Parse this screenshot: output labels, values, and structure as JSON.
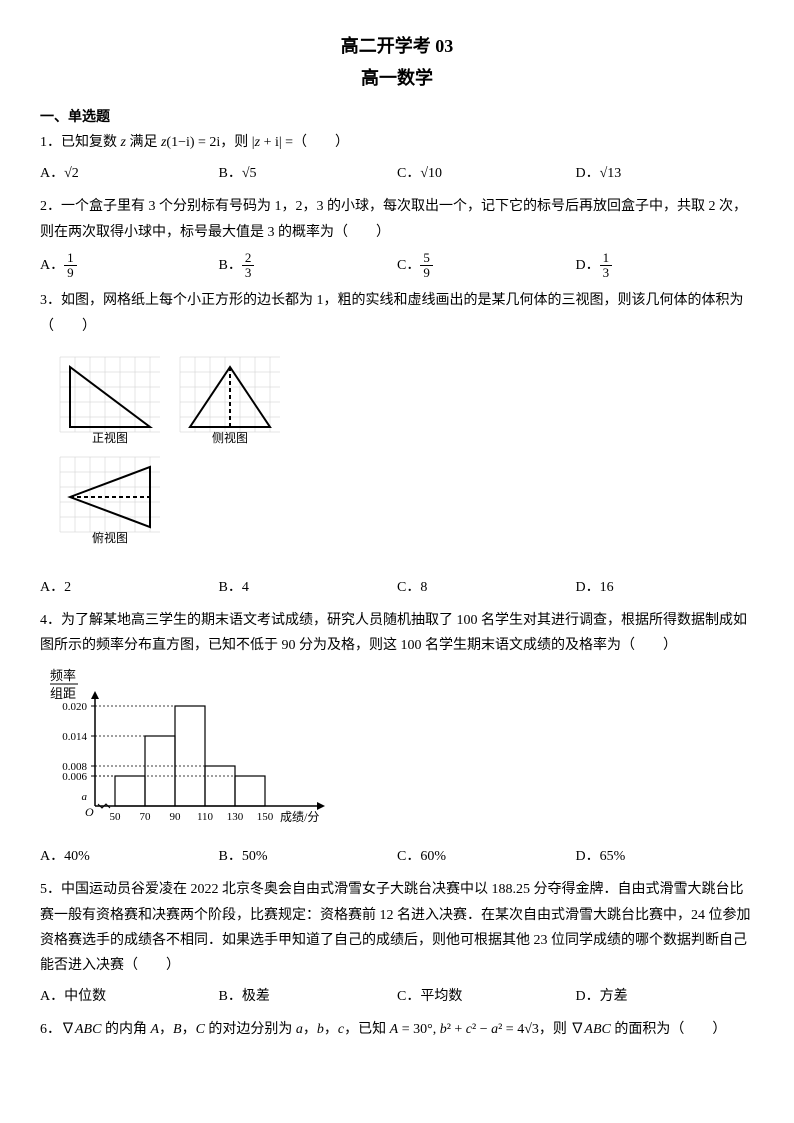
{
  "title": "高二开学考 03",
  "subtitle": "高一数学",
  "section1": "一、单选题",
  "q1": {
    "text": "1．已知复数 z 满足 z(1−i) = 2i，则 |z + i| =（　　）",
    "A": "A．√2",
    "B": "B．√5",
    "C": "C．√10",
    "D": "D．√13"
  },
  "q2": {
    "text": "2．一个盒子里有 3 个分别标有号码为 1，2，3 的小球，每次取出一个，记下它的标号后再放回盒子中，共取 2 次，则在两次取得小球中，标号最大值是 3 的概率为（　　）",
    "A_pre": "A．",
    "A_num": "1",
    "A_den": "9",
    "B_pre": "B．",
    "B_num": "2",
    "B_den": "3",
    "C_pre": "C．",
    "C_num": "5",
    "C_den": "9",
    "D_pre": "D．",
    "D_num": "1",
    "D_den": "3"
  },
  "q3": {
    "text": "3．如图，网格纸上每个小正方形的边长都为 1，粗的实线和虚线画出的是某几何体的三视图，则该几何体的体积为（　　）",
    "label_front": "正视图",
    "label_side": "侧视图",
    "label_top": "俯视图",
    "A": "A．2",
    "B": "B．4",
    "C": "C．8",
    "D": "D．16",
    "grid_color": "#cccccc",
    "stroke": "#000000",
    "dash": "4,3"
  },
  "q4": {
    "text": "4．为了解某地高三学生的期末语文考试成绩，研究人员随机抽取了 100 名学生对其进行调查，根据所得数据制成如图所示的频率分布直方图，已知不低于 90 分为及格，则这 100 名学生期末语文成绩的及格率为（　　）",
    "ylabel1": "频率",
    "ylabel2": "组距",
    "yticks": [
      "0.020",
      "0.014",
      "0.008",
      "0.006",
      "a"
    ],
    "xticks": [
      "50",
      "70",
      "90",
      "110",
      "130",
      "150"
    ],
    "xlabel": "成绩/分",
    "bars": [
      0.006,
      0.014,
      0.02,
      0.008,
      0.006
    ],
    "stroke": "#000000",
    "A": "A．40%",
    "B": "B．50%",
    "C": "C．60%",
    "D": "D．65%"
  },
  "q5": {
    "text": "5．中国运动员谷爱凌在 2022 北京冬奥会自由式滑雪女子大跳台决赛中以 188.25 分夺得金牌．自由式滑雪大跳台比赛一般有资格赛和决赛两个阶段，比赛规定：资格赛前 12 名进入决赛．在某次自由式滑雪大跳台比赛中，24 位参加资格赛选手的成绩各不相同．如果选手甲知道了自己的成绩后，则他可根据其他 23 位同学成绩的哪个数据判断自己能否进入决赛（　　）",
    "A": "A．中位数",
    "B": "B．极差",
    "C": "C．平均数",
    "D": "D．方差"
  },
  "q6": {
    "text": "6．∇ABC 的内角 A，B，C 的对边分别为 a，b，c，已知 A = 30°, b² + c² − a² = 4√3，则 ∇ABC 的面积为（　　）"
  }
}
